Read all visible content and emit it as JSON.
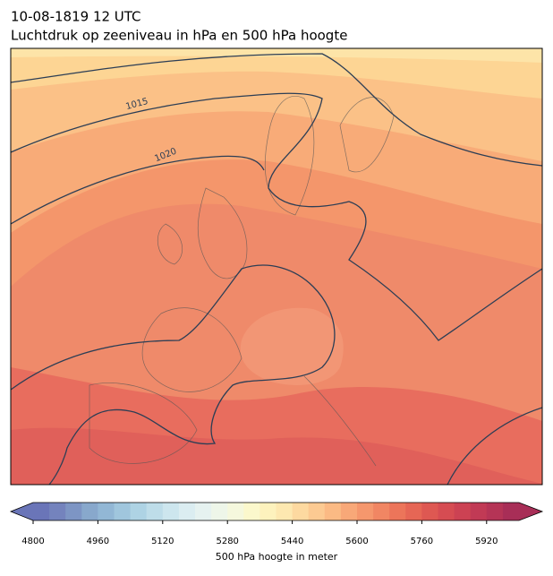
{
  "header": {
    "date": "10-08-1819 12 UTC",
    "title": "Luchtdruk op zeeniveau in hPa en 500 hPa hoogte"
  },
  "map": {
    "contour_labels": [
      "1015",
      "1020"
    ]
  },
  "colorbar": {
    "label": "500 hPa hoogte in meter",
    "xlim": [
      4800,
      6000
    ],
    "xticks": [
      4800,
      4960,
      5120,
      5280,
      5440,
      5600,
      5760,
      5920
    ],
    "colors": [
      "#6a75b8",
      "#7483bd",
      "#7d95c4",
      "#88a8cc",
      "#92b7d5",
      "#a0c6dd",
      "#aed3e4",
      "#bedde9",
      "#cde6ee",
      "#dbedf1",
      "#e6f2f0",
      "#eef6e9",
      "#f5f8dd",
      "#fbf8cc",
      "#fdf2bd",
      "#fde8b0",
      "#fdd9a0",
      "#fcca92",
      "#fbba84",
      "#f8a878",
      "#f5976d",
      "#f18663",
      "#ec755a",
      "#e66655",
      "#de5852",
      "#d64c52",
      "#cc4253",
      "#c13a55",
      "#b53456",
      "#a82e57"
    ]
  }
}
